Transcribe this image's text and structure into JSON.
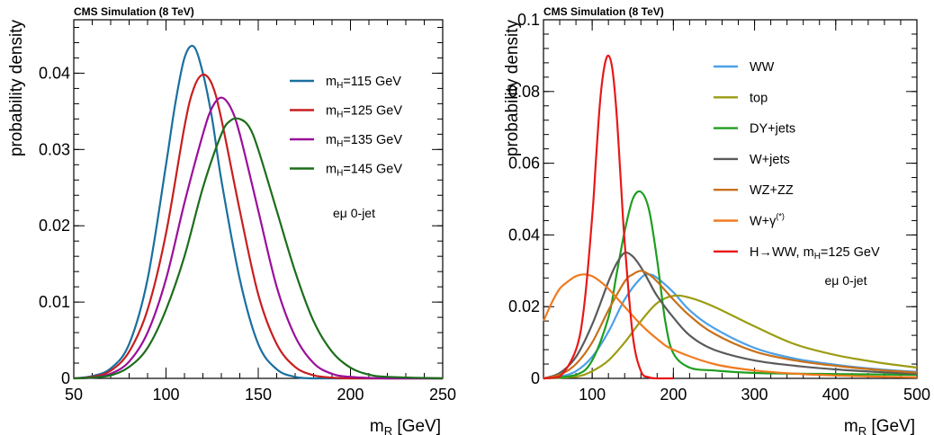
{
  "chart_data": [
    {
      "type": "line",
      "header": "CMS Simulation (8 TeV)",
      "xlabel_main": "m",
      "xlabel_sub": "R",
      "xlabel_unit": " [GeV]",
      "ylabel": "probability density",
      "xlim": [
        50,
        250
      ],
      "ylim": [
        0,
        0.047
      ],
      "xticks": [
        50,
        100,
        150,
        200,
        250
      ],
      "xtick_labels": [
        "50",
        "100",
        "150",
        "200",
        "250"
      ],
      "yticks": [
        0,
        0.01,
        0.02,
        0.03,
        0.04
      ],
      "ytick_labels": [
        "0",
        "0.01",
        "0.02",
        "0.03",
        "0.04"
      ],
      "annotation": "eμ 0-jet",
      "legend_position": "top-right",
      "series": [
        {
          "name": "m_H=115 GeV",
          "label_main": "m",
          "label_sub": "H",
          "label_rest": "=115 GeV",
          "color": "#1a6f9e",
          "x": [
            50,
            60,
            70,
            80,
            90,
            100,
            105,
            110,
            115,
            120,
            125,
            130,
            140,
            150,
            160,
            170,
            180,
            200,
            220,
            250
          ],
          "y": [
            0,
            0.0003,
            0.0013,
            0.0045,
            0.013,
            0.028,
            0.036,
            0.042,
            0.0435,
            0.04,
            0.034,
            0.026,
            0.013,
            0.0045,
            0.0012,
            0.0002,
            0,
            0,
            0,
            0
          ]
        },
        {
          "name": "m_H=125 GeV",
          "label_main": "m",
          "label_sub": "H",
          "label_rest": "=125 GeV",
          "color": "#c81e1e",
          "x": [
            50,
            60,
            70,
            80,
            90,
            100,
            110,
            115,
            120,
            125,
            130,
            140,
            150,
            160,
            170,
            180,
            190,
            200,
            220,
            250
          ],
          "y": [
            0,
            0.0002,
            0.001,
            0.0035,
            0.009,
            0.019,
            0.033,
            0.038,
            0.0398,
            0.0385,
            0.034,
            0.022,
            0.011,
            0.0045,
            0.0015,
            0.0004,
            0.0001,
            0,
            0,
            0
          ]
        },
        {
          "name": "m_H=135 GeV",
          "label_main": "m",
          "label_sub": "H",
          "label_rest": "=135 GeV",
          "color": "#9a0f9a",
          "x": [
            50,
            60,
            70,
            80,
            90,
            100,
            110,
            120,
            125,
            130,
            135,
            140,
            150,
            160,
            170,
            180,
            190,
            200,
            220,
            250
          ],
          "y": [
            0,
            0.0001,
            0.0006,
            0.0022,
            0.006,
            0.013,
            0.023,
            0.032,
            0.0355,
            0.0368,
            0.0355,
            0.032,
            0.022,
            0.012,
            0.0055,
            0.002,
            0.0006,
            0.0002,
            0,
            0
          ]
        },
        {
          "name": "m_H=145 GeV",
          "label_main": "m",
          "label_sub": "H",
          "label_rest": "=145 GeV",
          "color": "#1b6e1b",
          "x": [
            50,
            60,
            70,
            80,
            90,
            100,
            110,
            120,
            130,
            135,
            140,
            145,
            150,
            160,
            170,
            180,
            190,
            200,
            210,
            220,
            250
          ],
          "y": [
            0,
            0.0001,
            0.0004,
            0.0015,
            0.004,
            0.009,
            0.016,
            0.025,
            0.032,
            0.0338,
            0.034,
            0.033,
            0.03,
            0.022,
            0.014,
            0.0075,
            0.0035,
            0.0014,
            0.0005,
            0.0002,
            0
          ]
        }
      ]
    },
    {
      "type": "line",
      "header": "CMS Simulation (8 TeV)",
      "xlabel_main": "m",
      "xlabel_sub": "R",
      "xlabel_unit": " [GeV]",
      "ylabel": "probability density",
      "xlim": [
        40,
        500
      ],
      "ylim": [
        0,
        0.1
      ],
      "xticks": [
        100,
        200,
        300,
        400,
        500
      ],
      "xtick_labels": [
        "100",
        "200",
        "300",
        "400",
        "500"
      ],
      "yticks": [
        0,
        0.02,
        0.04,
        0.06,
        0.08,
        0.1
      ],
      "ytick_labels": [
        "0",
        "0.02",
        "0.04",
        "0.06",
        "0.08",
        "0.1"
      ],
      "annotation": "eμ 0-jet",
      "legend_position": "top-right",
      "series": [
        {
          "name": "WW",
          "label_main": "WW",
          "color": "#4ba0e8",
          "x": [
            40,
            60,
            80,
            100,
            120,
            140,
            160,
            170,
            180,
            200,
            220,
            250,
            300,
            350,
            400,
            450,
            500
          ],
          "y": [
            0,
            0.0005,
            0.002,
            0.006,
            0.013,
            0.022,
            0.028,
            0.029,
            0.028,
            0.024,
            0.019,
            0.014,
            0.0085,
            0.0055,
            0.0038,
            0.0026,
            0.0018
          ]
        },
        {
          "name": "top",
          "label_main": "top",
          "color": "#9c9c12",
          "x": [
            40,
            80,
            100,
            120,
            140,
            160,
            180,
            200,
            220,
            250,
            300,
            350,
            400,
            450,
            500
          ],
          "y": [
            0,
            0.0005,
            0.002,
            0.005,
            0.01,
            0.016,
            0.021,
            0.023,
            0.0225,
            0.02,
            0.0145,
            0.0095,
            0.0065,
            0.0045,
            0.003
          ]
        },
        {
          "name": "DY+jets",
          "label_main": "DY+jets",
          "color": "#1f9e1f",
          "x": [
            40,
            80,
            100,
            120,
            130,
            140,
            150,
            160,
            170,
            180,
            190,
            200,
            220,
            250,
            300,
            400,
            500
          ],
          "y": [
            0,
            0.001,
            0.005,
            0.017,
            0.029,
            0.041,
            0.05,
            0.052,
            0.047,
            0.033,
            0.016,
            0.007,
            0.003,
            0.0022,
            0.0015,
            0.0012,
            0.001
          ]
        },
        {
          "name": "W+jets",
          "label_main": "W+jets",
          "color": "#5a5a5a",
          "x": [
            40,
            60,
            80,
            100,
            120,
            130,
            140,
            150,
            160,
            170,
            180,
            200,
            220,
            250,
            300,
            350,
            400,
            450,
            500
          ],
          "y": [
            0,
            0.0015,
            0.006,
            0.015,
            0.027,
            0.032,
            0.035,
            0.034,
            0.031,
            0.027,
            0.023,
            0.017,
            0.012,
            0.008,
            0.005,
            0.0035,
            0.0025,
            0.0018,
            0.0013
          ]
        },
        {
          "name": "WZ+ZZ",
          "label_main": "WZ+ZZ",
          "color": "#c8701a",
          "x": [
            40,
            60,
            80,
            100,
            120,
            140,
            150,
            160,
            170,
            180,
            200,
            220,
            250,
            300,
            350,
            400,
            450,
            500
          ],
          "y": [
            0,
            0.001,
            0.004,
            0.01,
            0.019,
            0.027,
            0.029,
            0.03,
            0.029,
            0.027,
            0.022,
            0.0175,
            0.0125,
            0.0075,
            0.005,
            0.0035,
            0.0024,
            0.0016
          ]
        },
        {
          "name": "W+γ(*)",
          "label_main": "W+γ",
          "label_sup": "(*)",
          "color": "#f07a1e",
          "x": [
            40,
            50,
            60,
            70,
            80,
            90,
            100,
            110,
            120,
            140,
            160,
            180,
            200,
            250,
            300,
            350,
            400,
            450,
            500
          ],
          "y": [
            0.016,
            0.021,
            0.025,
            0.027,
            0.0285,
            0.029,
            0.0285,
            0.027,
            0.025,
            0.02,
            0.015,
            0.011,
            0.008,
            0.004,
            0.0022,
            0.0013,
            0.0008,
            0.0005,
            0.0003
          ]
        },
        {
          "name": "H→WW, m_H=125 GeV",
          "label_main": "H→WW, m",
          "label_sub": "H",
          "label_rest": "=125 GeV",
          "color": "#e81818",
          "x": [
            40,
            60,
            80,
            90,
            100,
            105,
            110,
            115,
            120,
            125,
            130,
            135,
            140,
            150,
            160,
            170,
            180,
            200
          ],
          "y": [
            0,
            0.0005,
            0.008,
            0.02,
            0.045,
            0.062,
            0.078,
            0.087,
            0.09,
            0.086,
            0.074,
            0.056,
            0.038,
            0.012,
            0.002,
            0.0003,
            0,
            0
          ]
        }
      ]
    }
  ]
}
